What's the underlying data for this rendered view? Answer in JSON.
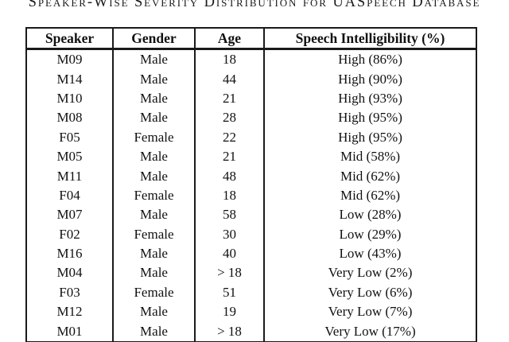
{
  "caption": {
    "title": "Speaker-Wise Severity Distribution for UASpeech Database"
  },
  "table": {
    "columns": [
      "Speaker",
      "Gender",
      "Age",
      "Speech Intelligibility (%)"
    ],
    "rows": [
      [
        "M09",
        "Male",
        "18",
        "High (86%)"
      ],
      [
        "M14",
        "Male",
        "44",
        "High (90%)"
      ],
      [
        "M10",
        "Male",
        "21",
        "High (93%)"
      ],
      [
        "M08",
        "Male",
        "28",
        "High (95%)"
      ],
      [
        "F05",
        "Female",
        "22",
        "High (95%)"
      ],
      [
        "M05",
        "Male",
        "21",
        "Mid (58%)"
      ],
      [
        "M11",
        "Male",
        "48",
        "Mid (62%)"
      ],
      [
        "F04",
        "Female",
        "18",
        "Mid (62%)"
      ],
      [
        "M07",
        "Male",
        "58",
        "Low (28%)"
      ],
      [
        "F02",
        "Female",
        "30",
        "Low (29%)"
      ],
      [
        "M16",
        "Male",
        "40",
        "Low (43%)"
      ],
      [
        "M04",
        "Male",
        "> 18",
        "Very Low (2%)"
      ],
      [
        "F03",
        "Female",
        "51",
        "Very Low (6%)"
      ],
      [
        "M12",
        "Male",
        "19",
        "Very Low (7%)"
      ],
      [
        "M01",
        "Male",
        "> 18",
        "Very Low (17%)"
      ]
    ],
    "text_color": "#111111",
    "border_color": "#1a1a1a",
    "background_color": "#ffffff"
  }
}
